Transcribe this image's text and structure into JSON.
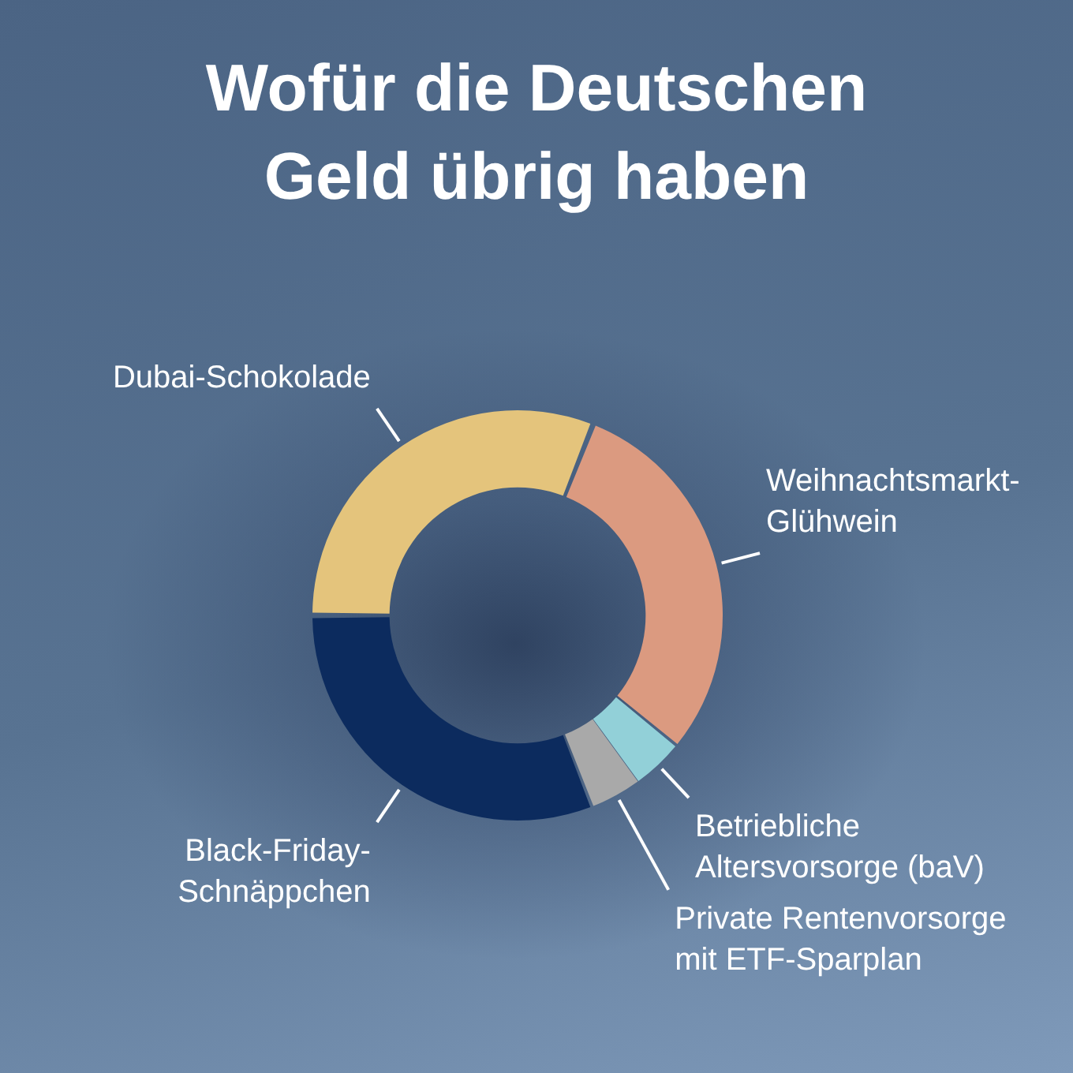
{
  "chart_data": {
    "type": "donut",
    "title": "Wofür die Deutschen Geld übrig haben",
    "categories": [
      "Dubai-Schokolade",
      "Weihnachtsmarkt-Glühwein",
      "Betriebliche Altersvorsorge (baV)",
      "Private Rentenvorsorge mit ETF-Sparplan",
      "Black-Friday-Schnäppchen"
    ],
    "values": [
      31,
      30,
      4,
      4,
      31
    ],
    "colors": [
      "#e4c47c",
      "#db9a80",
      "#92d0d8",
      "#a9a9a9",
      "#0c2b5e"
    ]
  }
}
